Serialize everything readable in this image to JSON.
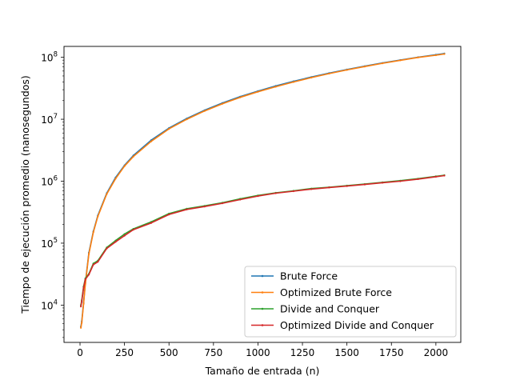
{
  "chart_data": {
    "type": "line",
    "title": "",
    "xlabel": "Tamaño de entrada (n)",
    "ylabel": "Tiempo de ejecución promedio (nanosegundos)",
    "xlim": [
      -90,
      2140
    ],
    "ylim": [
      2500,
      150000000
    ],
    "yscale": "log",
    "grid": false,
    "legend_position": "lower right",
    "x_ticks": [
      0,
      250,
      500,
      750,
      1000,
      1250,
      1500,
      1750,
      2000
    ],
    "x_tick_labels": [
      "0",
      "250",
      "500",
      "750",
      "1000",
      "1250",
      "1500",
      "1750",
      "2000"
    ],
    "y_ticks": [
      10000,
      100000,
      1000000,
      10000000,
      100000000
    ],
    "y_tick_base": "10",
    "y_tick_exponents": [
      "4",
      "5",
      "6",
      "7",
      "8"
    ],
    "x": [
      5,
      10,
      20,
      30,
      50,
      75,
      100,
      150,
      200,
      250,
      300,
      400,
      500,
      600,
      700,
      800,
      900,
      1000,
      1100,
      1200,
      1300,
      1400,
      1500,
      1600,
      1700,
      1800,
      1900,
      2000,
      2048
    ],
    "series": [
      {
        "name": "Brute Force",
        "color": "#1f77b4",
        "values": [
          4500,
          5500,
          11000,
          23000,
          70000,
          155000,
          280000,
          640000,
          1150000,
          1800000,
          2600000,
          4600000,
          7200000,
          10300000,
          14000000,
          18300000,
          23200000,
          28500000,
          34500000,
          41000000,
          48000000,
          55500000,
          63500000,
          72000000,
          81000000,
          90500000,
          100500000,
          110000000,
          115000000
        ]
      },
      {
        "name": "Optimized Brute Force",
        "color": "#ff7f0e",
        "values": [
          4300,
          5200,
          10500,
          22000,
          67000,
          150000,
          270000,
          620000,
          1100000,
          1750000,
          2500000,
          4400000,
          7000000,
          10000000,
          13600000,
          17800000,
          22600000,
          27800000,
          33500000,
          40000000,
          47000000,
          54500000,
          62500000,
          71000000,
          80000000,
          89500000,
          99500000,
          108000000,
          113000000
        ]
      },
      {
        "name": "Divide and Conquer",
        "color": "#2ca02c",
        "values": [
          10000,
          12000,
          20000,
          27000,
          32000,
          47000,
          52000,
          85000,
          110000,
          140000,
          170000,
          220000,
          300000,
          360000,
          400000,
          450000,
          520000,
          590000,
          650000,
          700000,
          760000,
          800000,
          850000,
          900000,
          960000,
          1020000,
          1100000,
          1200000,
          1250000
        ]
      },
      {
        "name": "Optimized Divide and Conquer",
        "color": "#d62728",
        "values": [
          9500,
          11500,
          19000,
          26000,
          31000,
          45000,
          50000,
          82000,
          105000,
          132000,
          165000,
          212000,
          290000,
          350000,
          390000,
          440000,
          505000,
          575000,
          640000,
          690000,
          745000,
          790000,
          835000,
          885000,
          945000,
          1000000,
          1080000,
          1180000,
          1230000
        ]
      }
    ]
  }
}
